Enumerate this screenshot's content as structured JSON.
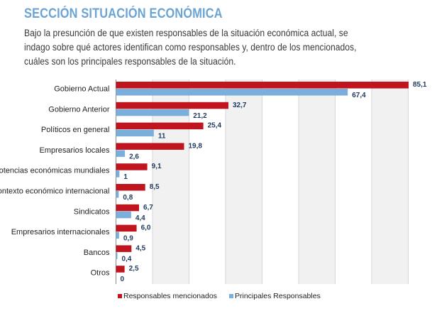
{
  "header": {
    "title": "SECCIÓN SITUACIÓN ECONÓMICA",
    "intro_lines": [
      "Bajo la presunción de que existen responsables de la situación económica actual, se",
      "indago sobre qué actores identifican como responsables y, dentro de los mencionados,",
      "cuáles son los principales responsables de la situación."
    ]
  },
  "chart_data": {
    "type": "bar",
    "orientation": "horizontal",
    "categories": [
      "Gobierno Actual",
      "Gobierno Anterior",
      "Políticos en general",
      "Empresarios locales",
      "Potencias económicas mundiales",
      "Contexto económico internacional",
      "Sindicatos",
      "Empresarios internacionales",
      "Bancos",
      "Otros"
    ],
    "series": [
      {
        "name": "Responsables mencionados",
        "color": "#c0141e",
        "values": [
          85.1,
          32.7,
          25.4,
          19.8,
          9.1,
          8.5,
          6.7,
          6.0,
          4.5,
          2.5
        ],
        "labels": [
          "85,1",
          "32,7",
          "25,4",
          "19,8",
          "9,1",
          "8,5",
          "6,7",
          "6,0",
          "4,5",
          "2,5"
        ]
      },
      {
        "name": "Principales Responsables",
        "color": "#7aaedb",
        "values": [
          67.4,
          21.2,
          11,
          2.6,
          1,
          0.8,
          4.4,
          0.9,
          0.4,
          0
        ],
        "labels": [
          "67,4",
          "21,2",
          "11",
          "2,6",
          "1",
          "0,8",
          "4,4",
          "0,9",
          "0,4",
          "0"
        ]
      }
    ],
    "xlim": [
      0,
      85.1
    ],
    "grid": true,
    "legend_position": "bottom"
  }
}
